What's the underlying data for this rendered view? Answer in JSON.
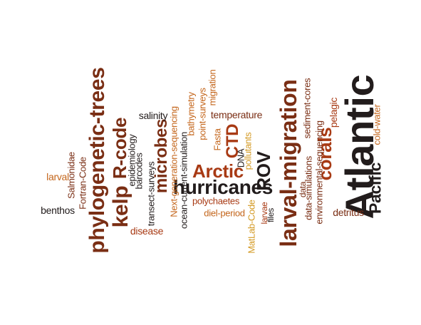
{
  "colors": {
    "dark": "#221c1c",
    "brown": "#7a2e14",
    "rust": "#a83a14",
    "orange": "#c4661c",
    "gold": "#d49a24"
  },
  "words": [
    {
      "id": "atlantic",
      "text": "Atlantic"
    },
    {
      "id": "pacific",
      "text": "Pacific"
    },
    {
      "id": "larval-migration",
      "text": "larval-migration"
    },
    {
      "id": "phylogenetic-trees",
      "text": "phylogenetic-trees"
    },
    {
      "id": "hurricanes",
      "text": "hurricanes"
    },
    {
      "id": "rov",
      "text": "ROV"
    },
    {
      "id": "arctic",
      "text": "Arctic"
    },
    {
      "id": "kelp",
      "text": "kelp"
    },
    {
      "id": "r-code",
      "text": "R-code"
    },
    {
      "id": "microbes",
      "text": "microbes"
    },
    {
      "id": "corals",
      "text": "corals"
    },
    {
      "id": "ctd",
      "text": "CTD"
    },
    {
      "id": "cold-water",
      "text": "cold-water"
    },
    {
      "id": "detritus",
      "text": "detritus"
    },
    {
      "id": "pelagic",
      "text": "pelagic"
    },
    {
      "id": "environmental-sequencing",
      "text": "environmental-sequencing"
    },
    {
      "id": "sediment-cores",
      "text": "sediment-cores"
    },
    {
      "id": "data-simulations",
      "text": "data-simulations"
    },
    {
      "id": "data",
      "text": "data"
    },
    {
      "id": "files",
      "text": "files"
    },
    {
      "id": "larvae",
      "text": "larvae"
    },
    {
      "id": "matlab-code",
      "text": "MatLab-Code"
    },
    {
      "id": "pollutants",
      "text": "pollutants"
    },
    {
      "id": "dna",
      "text": "DNA"
    },
    {
      "id": "fasta",
      "text": "Fasta"
    },
    {
      "id": "temperature",
      "text": "temperature"
    },
    {
      "id": "migration",
      "text": "migration"
    },
    {
      "id": "point-surveys",
      "text": "point-surveys"
    },
    {
      "id": "bathymetry",
      "text": "bathymetry"
    },
    {
      "id": "polychaetes",
      "text": "polychaetes"
    },
    {
      "id": "diel-period",
      "text": "diel-period"
    },
    {
      "id": "next-generation-sequencing",
      "text": "Next-generation-sequencing"
    },
    {
      "id": "ocean-current-simulation",
      "text": "ocean-current-simulation"
    },
    {
      "id": "salinity",
      "text": "salinity"
    },
    {
      "id": "disease",
      "text": "disease"
    },
    {
      "id": "transect-surveys",
      "text": "transect-surveys"
    },
    {
      "id": "barcodes",
      "text": "barcodes"
    },
    {
      "id": "epidemiology",
      "text": "epidemiology"
    },
    {
      "id": "fortran-code",
      "text": "Fortran-Code"
    },
    {
      "id": "salmonidae",
      "text": "Salmonidae"
    },
    {
      "id": "larval",
      "text": "larval"
    },
    {
      "id": "benthos",
      "text": "benthos"
    }
  ]
}
